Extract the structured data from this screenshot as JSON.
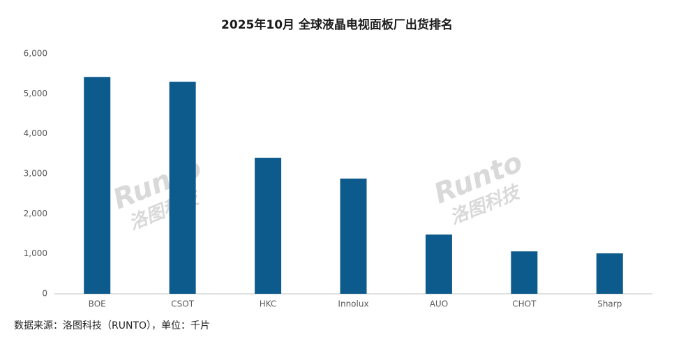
{
  "chart_data": {
    "type": "bar",
    "title": "2025年10月 全球液晶电视面板厂出货排名",
    "categories": [
      "BOE",
      "CSOT",
      "HKC",
      "Innolux",
      "AUO",
      "CHOT",
      "Sharp"
    ],
    "values": [
      5420,
      5300,
      3400,
      2880,
      1480,
      1060,
      1010
    ],
    "color": "#0d5a8c",
    "ylim": [
      0,
      6000
    ],
    "yticks": [
      0,
      {
        "value": 1000,
        "label": "1,000"
      },
      {
        "value": 2000,
        "label": "2,000"
      },
      {
        "value": 3000,
        "label": "3,000"
      },
      {
        "value": 4000,
        "label": "4,000"
      },
      {
        "value": 5000,
        "label": "5,000"
      },
      {
        "value": 6000,
        "label": "6,000"
      }
    ],
    "grid": false,
    "source": "数据来源：洛图科技（RUNTO），单位：千片",
    "watermark": [
      "Runto",
      "洛图科技"
    ]
  }
}
